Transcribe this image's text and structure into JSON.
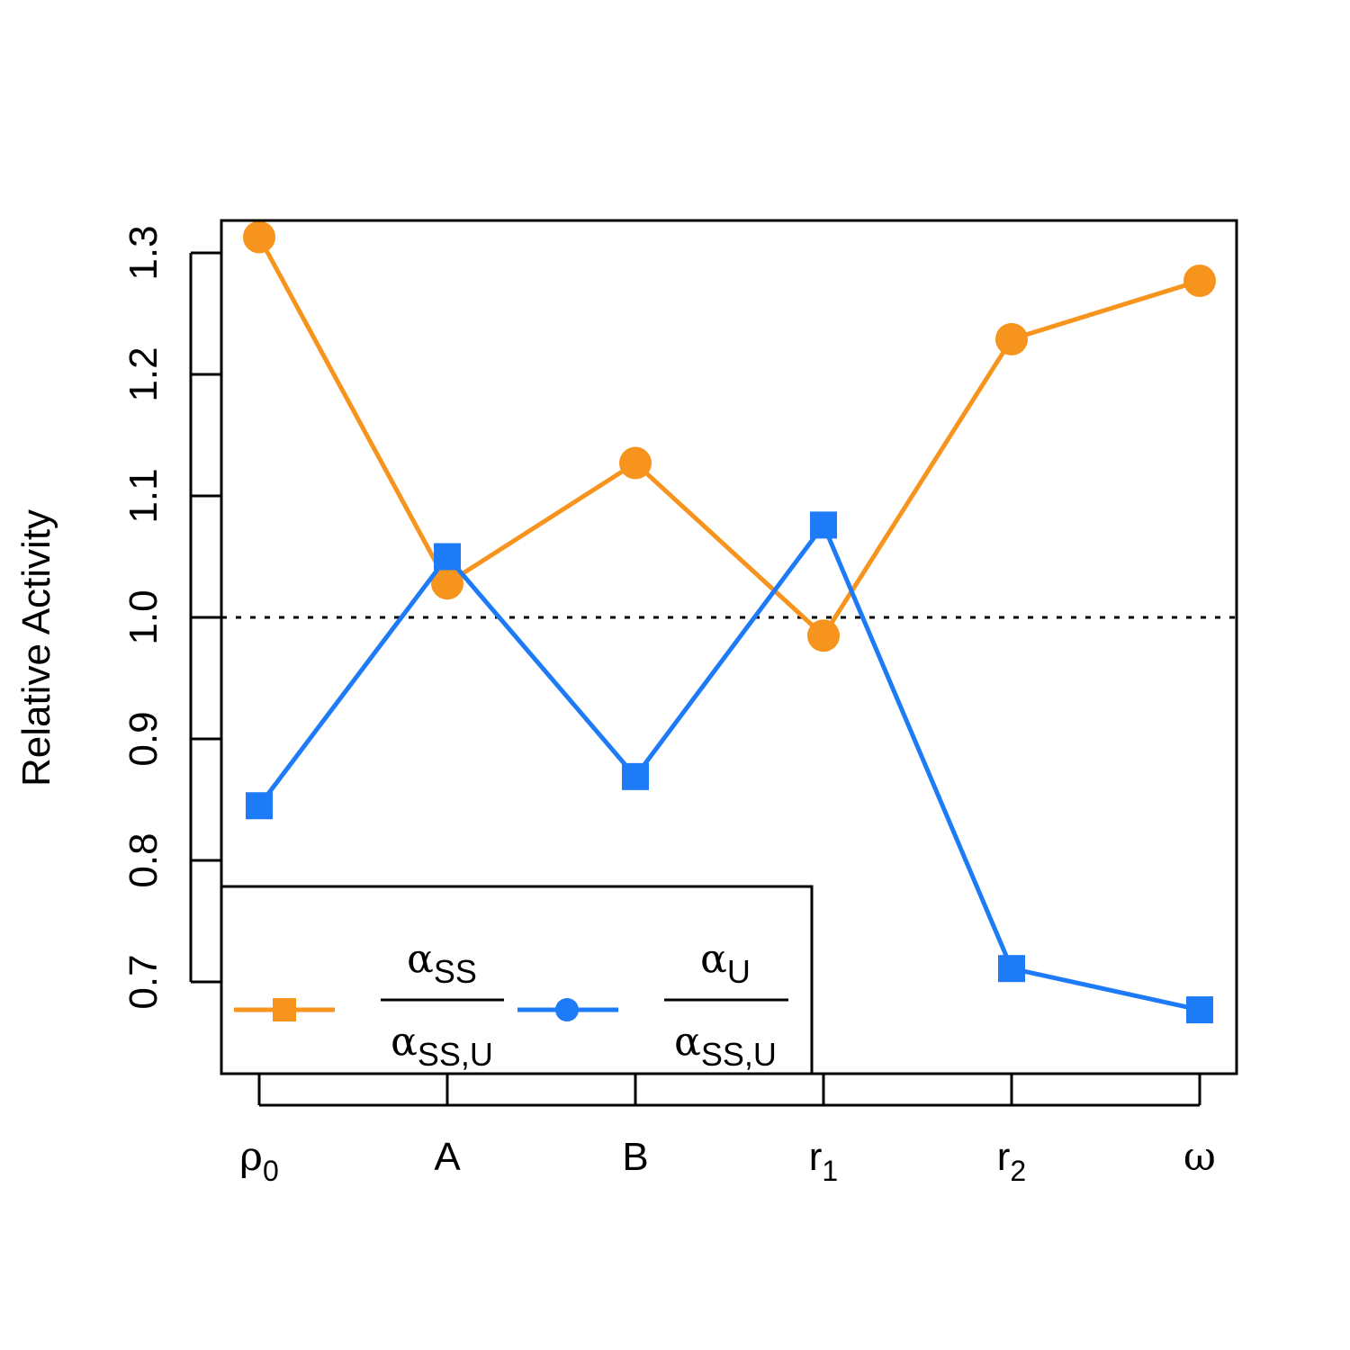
{
  "chart_data": {
    "type": "line",
    "categories": [
      {
        "base": "ρ",
        "sub": "0"
      },
      {
        "base": "A",
        "sub": ""
      },
      {
        "base": "B",
        "sub": ""
      },
      {
        "base": "r",
        "sub": "1"
      },
      {
        "base": "r",
        "sub": "2"
      },
      {
        "base": "ω",
        "sub": ""
      }
    ],
    "ylabel": "Relative Activity",
    "ylim": [
      0.65,
      1.35
    ],
    "yticks": [
      "0.7",
      "0.8",
      "0.9",
      "1.0",
      "1.1",
      "1.2",
      "1.3"
    ],
    "reference_line": {
      "y": 1.0,
      "style": "dotted",
      "color": "#000000"
    },
    "series": [
      {
        "key": "ss",
        "color": "#F7941D",
        "marker": "circle",
        "values": [
          1.313,
          1.028,
          1.127,
          0.985,
          1.229,
          1.277
        ],
        "legend": {
          "num_base": "α",
          "num_sub": "SS",
          "den_base": "α",
          "den_sub": "SS,U",
          "marker": "square"
        }
      },
      {
        "key": "u",
        "color": "#1E7BF7",
        "marker": "square",
        "values": [
          0.845,
          1.05,
          0.869,
          1.076,
          0.711,
          0.677
        ],
        "legend": {
          "num_base": "α",
          "num_sub": "U",
          "den_base": "α",
          "den_sub": "SS,U",
          "marker": "circle"
        }
      }
    ],
    "grid": false,
    "legend_position": "bottom-left"
  }
}
